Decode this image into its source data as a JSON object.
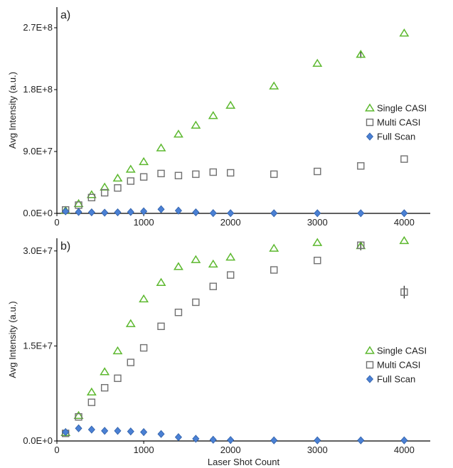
{
  "chart_data": [
    {
      "type": "scatter",
      "panel_label": "a)",
      "ylabel": "Avg Intensity (a.u.)",
      "xlabel": "",
      "xlim": [
        0,
        4300
      ],
      "ylim": [
        0,
        300000000
      ],
      "xticks": [
        0,
        1000,
        2000,
        3000,
        4000
      ],
      "xtick_labels": [
        "0",
        "1000",
        "2000",
        "3000",
        "4000"
      ],
      "yticks": [
        0,
        90000000,
        180000000,
        270000000
      ],
      "ytick_labels": [
        "0.0E+0",
        "9.0E+7",
        "1.8E+8",
        "2.7E+8"
      ],
      "legend_position": "center-right",
      "series": [
        {
          "name": "Single CASI",
          "marker": "triangle",
          "color": "#5cb82e",
          "x": [
            100,
            250,
            400,
            550,
            700,
            850,
            1000,
            1200,
            1400,
            1600,
            1800,
            2000,
            2500,
            3000,
            3500,
            4000
          ],
          "y": [
            4000000,
            14000000,
            27000000,
            38000000,
            51000000,
            64000000,
            75000000,
            95000000,
            115000000,
            128000000,
            142000000,
            157000000,
            185000000,
            218000000,
            231000000,
            262000000
          ],
          "err": [
            0,
            0,
            0,
            0,
            0,
            0,
            0,
            0,
            0,
            0,
            0,
            0,
            0,
            0,
            5000000,
            0
          ]
        },
        {
          "name": "Multi CASI",
          "marker": "square",
          "color": "#707070",
          "x": [
            100,
            250,
            400,
            550,
            700,
            850,
            1000,
            1200,
            1400,
            1600,
            1800,
            2000,
            2500,
            3000,
            3500,
            4000
          ],
          "y": [
            5000000,
            12000000,
            23000000,
            30000000,
            37000000,
            47000000,
            53000000,
            58000000,
            55000000,
            57000000,
            60000000,
            59000000,
            57000000,
            61000000,
            69000000,
            79000000
          ],
          "err": [
            0,
            0,
            0,
            0,
            0,
            0,
            0,
            0,
            0,
            0,
            0,
            0,
            0,
            0,
            0,
            0
          ]
        },
        {
          "name": "Full Scan",
          "marker": "diamond",
          "color": "#4a80d4",
          "x": [
            100,
            250,
            400,
            550,
            700,
            850,
            1000,
            1200,
            1400,
            1600,
            1800,
            2000,
            2500,
            3000,
            3500,
            4000
          ],
          "y": [
            3000000,
            2000000,
            1500000,
            1000000,
            1500000,
            2000000,
            3000000,
            6000000,
            4000000,
            1500000,
            400000,
            300000,
            200000,
            200000,
            200000,
            200000
          ],
          "err": [
            0,
            0,
            0,
            0,
            0,
            0,
            0,
            0,
            0,
            0,
            0,
            0,
            0,
            0,
            0,
            0
          ]
        }
      ]
    },
    {
      "type": "scatter",
      "panel_label": "b)",
      "ylabel": "Avg Intensity (a.u.)",
      "xlabel": "Laser Shot Count",
      "xlim": [
        0,
        4300
      ],
      "ylim": [
        0,
        32000000
      ],
      "xticks": [
        0,
        1000,
        2000,
        3000,
        4000
      ],
      "xtick_labels": [
        "0",
        "1000",
        "2000",
        "3000",
        "4000"
      ],
      "yticks": [
        0,
        15000000,
        30000000
      ],
      "ytick_labels": [
        "0.0E+0",
        "1.5E+7",
        "3.0E+7"
      ],
      "legend_position": "lower-right",
      "series": [
        {
          "name": "Single CASI",
          "marker": "triangle",
          "color": "#5cb82e",
          "x": [
            100,
            250,
            400,
            550,
            700,
            850,
            1000,
            1200,
            1400,
            1600,
            1800,
            2000,
            2500,
            3000,
            3500,
            4000
          ],
          "y": [
            1300000,
            4000000,
            7700000,
            10900000,
            14200000,
            18500000,
            22400000,
            25000000,
            27500000,
            28600000,
            27900000,
            29000000,
            30400000,
            31300000,
            30800000,
            31600000
          ],
          "err": [
            0,
            0,
            0,
            0,
            0,
            0,
            0,
            0,
            0,
            0,
            0,
            0,
            0,
            0,
            700000,
            0
          ]
        },
        {
          "name": "Multi CASI",
          "marker": "square",
          "color": "#707070",
          "x": [
            100,
            250,
            400,
            550,
            700,
            850,
            1000,
            1200,
            1400,
            1600,
            1800,
            2000,
            2500,
            3000,
            3500,
            4000
          ],
          "y": [
            1200000,
            3800000,
            6100000,
            8400000,
            9900000,
            12400000,
            14700000,
            18100000,
            20300000,
            21900000,
            24400000,
            26200000,
            27000000,
            28500000,
            30900000,
            23500000
          ],
          "err": [
            0,
            0,
            0,
            0,
            0,
            0,
            0,
            0,
            0,
            0,
            0,
            0,
            0,
            0,
            0,
            1000000
          ]
        },
        {
          "name": "Full Scan",
          "marker": "diamond",
          "color": "#4a80d4",
          "x": [
            100,
            250,
            400,
            550,
            700,
            850,
            1000,
            1200,
            1400,
            1600,
            1800,
            2000,
            2500,
            3000,
            3500,
            4000
          ],
          "y": [
            1400000,
            2000000,
            1800000,
            1600000,
            1600000,
            1500000,
            1400000,
            1100000,
            600000,
            350000,
            200000,
            150000,
            100000,
            100000,
            100000,
            100000
          ],
          "err": [
            0,
            0,
            0,
            0,
            0,
            0,
            0,
            0,
            0,
            0,
            0,
            0,
            0,
            0,
            0,
            0
          ]
        }
      ]
    }
  ]
}
